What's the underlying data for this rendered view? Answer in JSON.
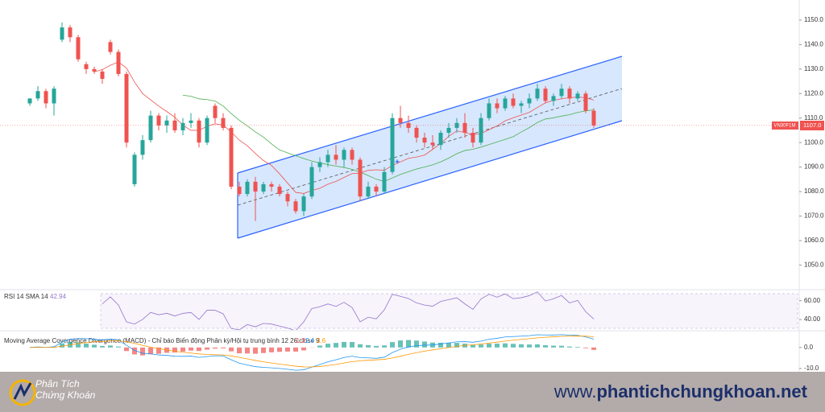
{
  "chart_data": {
    "type": "candlestick",
    "symbol": "VN30F1M",
    "last_price_label": "1107.0",
    "up_color": "#26a69a",
    "down_color": "#ef5350",
    "ylim": [
      1040.6,
      1158.2
    ],
    "yticks": [
      {
        "value": 1150,
        "label": "1150.0"
      },
      {
        "value": 1140,
        "label": "1140.0"
      },
      {
        "value": 1130,
        "label": "1130.0"
      },
      {
        "value": 1120,
        "label": "1120.0"
      },
      {
        "value": 1110,
        "label": "1110.0"
      },
      {
        "value": 1100,
        "label": "1100.0"
      },
      {
        "value": 1090,
        "label": "1090.0"
      },
      {
        "value": 1080,
        "label": "1080.0"
      },
      {
        "value": 1070,
        "label": "1070.0"
      },
      {
        "value": 1060,
        "label": "1060.0"
      },
      {
        "value": 1050,
        "label": "1050.0"
      }
    ],
    "open": [
      1116,
      1118,
      1121,
      1116,
      1142,
      1147,
      1143,
      1132,
      1130,
      1129,
      1141,
      1137,
      1128,
      1083,
      1095,
      1101,
      1111,
      1107,
      1109,
      1105,
      1108,
      1109,
      1100,
      1115,
      1110,
      1106,
      1082,
      1079,
      1084,
      1080,
      1083,
      1082,
      1079,
      1076,
      1072,
      1078,
      1090,
      1092,
      1095,
      1093,
      1097,
      1093,
      1078,
      1082,
      1080,
      1088,
      1110,
      1108,
      1106,
      1102,
      1100,
      1099,
      1104,
      1106,
      1108,
      1104,
      1100,
      1110,
      1116,
      1114,
      1118,
      1115,
      1116,
      1118,
      1122,
      1117,
      1119,
      1122,
      1118,
      1120,
      1113
    ],
    "high": [
      1118,
      1123,
      1122,
      1123,
      1149,
      1148,
      1144,
      1133,
      1131,
      1130,
      1142,
      1138,
      1129,
      1096,
      1103,
      1113,
      1112,
      1111,
      1112,
      1110,
      1112,
      1110,
      1111,
      1116,
      1112,
      1107,
      1084,
      1085,
      1086,
      1084,
      1084,
      1083,
      1080,
      1077,
      1079,
      1092,
      1094,
      1097,
      1099,
      1098,
      1098,
      1094,
      1084,
      1083,
      1090,
      1112,
      1115,
      1111,
      1107,
      1104,
      1103,
      1105,
      1108,
      1110,
      1112,
      1106,
      1112,
      1118,
      1118,
      1119,
      1120,
      1117,
      1120,
      1124,
      1123,
      1120,
      1124,
      1123,
      1121,
      1121,
      1114
    ],
    "low": [
      1115,
      1117,
      1114,
      1111,
      1141,
      1141,
      1133,
      1128,
      1128,
      1124,
      1136,
      1127,
      1098,
      1082,
      1093,
      1100,
      1105,
      1104,
      1104,
      1103,
      1106,
      1098,
      1099,
      1108,
      1105,
      1081,
      1078,
      1078,
      1068,
      1079,
      1080,
      1078,
      1074,
      1071,
      1070,
      1077,
      1088,
      1090,
      1091,
      1090,
      1091,
      1076,
      1077,
      1078,
      1079,
      1087,
      1106,
      1104,
      1100,
      1098,
      1097,
      1097,
      1102,
      1104,
      1102,
      1098,
      1099,
      1109,
      1112,
      1113,
      1114,
      1112,
      1114,
      1117,
      1116,
      1115,
      1118,
      1116,
      1117,
      1112,
      1106
    ],
    "close": [
      1118,
      1121,
      1116,
      1122,
      1147,
      1143,
      1134,
      1130,
      1129,
      1126,
      1137,
      1128,
      1100,
      1095,
      1101,
      1111,
      1107,
      1109,
      1105,
      1108,
      1109,
      1100,
      1110,
      1110,
      1106,
      1082,
      1079,
      1084,
      1080,
      1083,
      1082,
      1079,
      1076,
      1072,
      1078,
      1090,
      1092,
      1095,
      1093,
      1097,
      1093,
      1078,
      1082,
      1080,
      1088,
      1110,
      1108,
      1106,
      1102,
      1100,
      1099,
      1104,
      1106,
      1108,
      1104,
      1100,
      1110,
      1116,
      1114,
      1118,
      1115,
      1116,
      1118,
      1122,
      1117,
      1119,
      1122,
      1118,
      1120,
      1113,
      1107
    ],
    "rsi": {
      "label": "RSI 14 SMA 14",
      "value_label": "42.94",
      "color": "#9575cd",
      "ylim": [
        29,
        70
      ],
      "yticks": [
        {
          "value": 60,
          "label": "60.00"
        },
        {
          "value": 40,
          "label": "40.00"
        }
      ]
    },
    "macd": {
      "label": "Moving Average Covergence Divergence (MACD) - Chỉ báo Biến động Phân kỳ/Hội tụ trung bình 12 26 close 9",
      "values": [
        -1.3,
        2.4,
        3.6
      ],
      "colors": [
        "#ef5350",
        "#2196f3",
        "#ff9800"
      ],
      "ylim": [
        -10.8,
        7.6
      ],
      "yticks": [
        {
          "value": 0,
          "label": "0.0"
        },
        {
          "value": -10,
          "label": "-10.0"
        }
      ]
    }
  },
  "footer": {
    "brand_line1": "Phân Tích",
    "brand_line2": "Chứng Khoán",
    "site_prefix": "www.",
    "site_domain": "phantichchungkhoan.net"
  }
}
